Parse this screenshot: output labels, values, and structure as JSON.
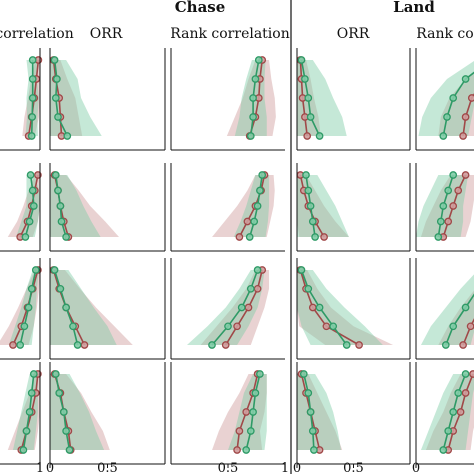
{
  "chart_data": {
    "type": "line",
    "description_note": "",
    "column_headers": [
      {
        "key": "chase",
        "text": "Chase"
      },
      {
        "key": "land",
        "text": "Land"
      }
    ],
    "panel_titles": {
      "c0": "Rank correlation",
      "c1": "ORR",
      "c2": "Rank correlation",
      "c3": "ORR",
      "c4": "Rank correlation"
    },
    "x_ticks": {
      "c0": [
        "1"
      ],
      "c1": [
        "0",
        "0.5"
      ],
      "c2": [
        "0.5",
        "1"
      ],
      "c3": [
        "0",
        "0.5"
      ],
      "c4": [
        "0"
      ]
    },
    "series": [
      {
        "key": "green",
        "color": "#2e9a66",
        "band": "#7fcca6"
      },
      {
        "key": "red",
        "color": "#a04848",
        "band": "#cf9b9b"
      }
    ],
    "panels": [
      {
        "row": 0,
        "col": 0,
        "xlim": [
          0,
          1
        ],
        "green": [
          0.86,
          0.86,
          0.86,
          0.85,
          0.84
        ],
        "red": [
          0.97,
          0.93,
          0.89,
          0.84,
          0.78
        ],
        "green_band": [
          0.12,
          0.08,
          0.12,
          0.1,
          0.12
        ],
        "red_band": [
          0.06,
          0.1,
          0.12,
          0.14,
          0.12
        ]
      },
      {
        "row": 0,
        "col": 1,
        "xlim": [
          0,
          1
        ],
        "green": [
          0.04,
          0.06,
          0.05,
          0.07,
          0.15
        ],
        "red": [
          0.03,
          0.05,
          0.08,
          0.09,
          0.1
        ],
        "green_band": [
          0.1,
          0.18,
          0.22,
          0.28,
          0.3
        ],
        "red_band": [
          0.06,
          0.1,
          0.14,
          0.16,
          0.18
        ]
      },
      {
        "row": 0,
        "col": 2,
        "xlim": [
          0,
          1
        ],
        "green": [
          0.77,
          0.74,
          0.72,
          0.72,
          0.7
        ],
        "red": [
          0.8,
          0.78,
          0.77,
          0.74,
          0.69
        ],
        "green_band": [
          0.06,
          0.08,
          0.1,
          0.12,
          0.14
        ],
        "red_band": [
          0.06,
          0.1,
          0.14,
          0.18,
          0.2
        ]
      },
      {
        "row": 0,
        "col": 3,
        "xlim": [
          0,
          1
        ],
        "green": [
          0.04,
          0.07,
          0.1,
          0.12,
          0.2
        ],
        "red": [
          0.03,
          0.04,
          0.05,
          0.07,
          0.09
        ],
        "green_band": [
          0.1,
          0.18,
          0.22,
          0.28,
          0.24
        ],
        "red_band": [
          0.05,
          0.08,
          0.1,
          0.12,
          0.12
        ]
      },
      {
        "row": 0,
        "col": 4,
        "xlim": [
          0,
          1
        ],
        "green": [
          0.6,
          0.4,
          0.3,
          0.25,
          0.22
        ],
        "red": [
          0.7,
          0.55,
          0.45,
          0.4,
          0.38
        ],
        "green_band": [
          0.12,
          0.15,
          0.18,
          0.2,
          0.2
        ],
        "red_band": [
          0.12,
          0.15,
          0.18,
          0.2,
          0.2
        ]
      },
      {
        "row": 1,
        "col": 0,
        "xlim": [
          0,
          1
        ],
        "green": [
          0.82,
          0.86,
          0.88,
          0.8,
          0.72
        ],
        "red": [
          0.96,
          0.9,
          0.84,
          0.76,
          0.62
        ],
        "green_band": [
          0.08,
          0.12,
          0.14,
          0.16,
          0.18
        ],
        "red_band": [
          0.06,
          0.12,
          0.16,
          0.2,
          0.24
        ]
      },
      {
        "row": 1,
        "col": 1,
        "xlim": [
          0,
          1
        ],
        "green": [
          0.05,
          0.07,
          0.09,
          0.1,
          0.14
        ],
        "red": [
          0.04,
          0.07,
          0.09,
          0.12,
          0.16
        ],
        "green_band": [
          0.1,
          0.16,
          0.2,
          0.26,
          0.3
        ],
        "red_band": [
          0.1,
          0.18,
          0.26,
          0.36,
          0.44
        ]
      },
      {
        "row": 1,
        "col": 2,
        "xlim": [
          0,
          1
        ],
        "green": [
          0.8,
          0.78,
          0.76,
          0.73,
          0.69
        ],
        "red": [
          0.82,
          0.79,
          0.74,
          0.67,
          0.6
        ],
        "green_band": [
          0.06,
          0.08,
          0.1,
          0.12,
          0.14
        ],
        "red_band": [
          0.08,
          0.12,
          0.16,
          0.2,
          0.24
        ]
      },
      {
        "row": 1,
        "col": 3,
        "xlim": [
          0,
          1
        ],
        "green": [
          0.08,
          0.1,
          0.12,
          0.14,
          0.16
        ],
        "red": [
          0.03,
          0.06,
          0.1,
          0.16,
          0.24
        ],
        "green_band": [
          0.1,
          0.16,
          0.22,
          0.26,
          0.3
        ],
        "red_band": [
          0.05,
          0.1,
          0.14,
          0.18,
          0.22
        ]
      },
      {
        "row": 1,
        "col": 4,
        "xlim": [
          0,
          1
        ],
        "green": [
          0.3,
          0.26,
          0.22,
          0.2,
          0.18
        ],
        "red": [
          0.4,
          0.34,
          0.3,
          0.26,
          0.22
        ],
        "green_band": [
          0.12,
          0.14,
          0.16,
          0.18,
          0.18
        ],
        "red_band": [
          0.12,
          0.14,
          0.16,
          0.18,
          0.18
        ]
      },
      {
        "row": 2,
        "col": 0,
        "xlim": [
          0,
          1
        ],
        "green": [
          0.92,
          0.84,
          0.78,
          0.7,
          0.62
        ],
        "red": [
          0.96,
          0.86,
          0.76,
          0.64,
          0.48
        ],
        "green_band": [
          0.06,
          0.1,
          0.14,
          0.18,
          0.22
        ],
        "red_band": [
          0.06,
          0.12,
          0.18,
          0.24,
          0.3
        ]
      },
      {
        "row": 2,
        "col": 1,
        "xlim": [
          0,
          1
        ],
        "green": [
          0.04,
          0.09,
          0.14,
          0.2,
          0.24
        ],
        "red": [
          0.03,
          0.08,
          0.14,
          0.22,
          0.3
        ],
        "green_band": [
          0.12,
          0.18,
          0.24,
          0.3,
          0.34
        ],
        "red_band": [
          0.1,
          0.18,
          0.26,
          0.34,
          0.42
        ]
      },
      {
        "row": 2,
        "col": 2,
        "xlim": [
          0,
          1
        ],
        "green": [
          0.76,
          0.7,
          0.62,
          0.5,
          0.36
        ],
        "red": [
          0.8,
          0.76,
          0.68,
          0.58,
          0.48
        ],
        "green_band": [
          0.06,
          0.1,
          0.14,
          0.18,
          0.22
        ],
        "red_band": [
          0.06,
          0.1,
          0.14,
          0.18,
          0.22
        ]
      },
      {
        "row": 2,
        "col": 3,
        "xlim": [
          0,
          1
        ],
        "green": [
          0.04,
          0.1,
          0.2,
          0.32,
          0.44
        ],
        "red": [
          0.03,
          0.08,
          0.14,
          0.26,
          0.55
        ],
        "green_band": [
          0.1,
          0.16,
          0.22,
          0.28,
          0.32
        ],
        "red_band": [
          0.06,
          0.1,
          0.16,
          0.24,
          0.3
        ]
      },
      {
        "row": 2,
        "col": 4,
        "xlim": [
          0,
          1
        ],
        "green": [
          0.6,
          0.5,
          0.4,
          0.3,
          0.24
        ],
        "red": [
          0.7,
          0.62,
          0.52,
          0.44,
          0.38
        ],
        "green_band": [
          0.1,
          0.14,
          0.16,
          0.18,
          0.2
        ],
        "red_band": [
          0.1,
          0.14,
          0.16,
          0.18,
          0.2
        ]
      },
      {
        "row": 3,
        "col": 0,
        "xlim": [
          0,
          1
        ],
        "green": [
          0.88,
          0.84,
          0.8,
          0.74,
          0.68
        ],
        "red": [
          0.96,
          0.92,
          0.84,
          0.74,
          0.64
        ],
        "green_band": [
          0.08,
          0.12,
          0.16,
          0.18,
          0.2
        ],
        "red_band": [
          0.06,
          0.12,
          0.18,
          0.22,
          0.26
        ]
      },
      {
        "row": 3,
        "col": 1,
        "xlim": [
          0,
          1
        ],
        "green": [
          0.05,
          0.08,
          0.12,
          0.14,
          0.17
        ],
        "red": [
          0.04,
          0.09,
          0.12,
          0.16,
          0.18
        ],
        "green_band": [
          0.12,
          0.18,
          0.22,
          0.26,
          0.3
        ],
        "red_band": [
          0.1,
          0.18,
          0.24,
          0.3,
          0.34
        ]
      },
      {
        "row": 3,
        "col": 2,
        "xlim": [
          0,
          1
        ],
        "green": [
          0.78,
          0.74,
          0.72,
          0.7,
          0.66
        ],
        "red": [
          0.76,
          0.72,
          0.66,
          0.6,
          0.58
        ],
        "green_band": [
          0.06,
          0.1,
          0.12,
          0.14,
          0.16
        ],
        "red_band": [
          0.08,
          0.12,
          0.16,
          0.18,
          0.22
        ]
      },
      {
        "row": 3,
        "col": 3,
        "xlim": [
          0,
          1
        ],
        "green": [
          0.06,
          0.1,
          0.12,
          0.14,
          0.15
        ],
        "red": [
          0.04,
          0.08,
          0.12,
          0.16,
          0.2
        ],
        "green_band": [
          0.1,
          0.16,
          0.2,
          0.22,
          0.24
        ],
        "red_band": [
          0.06,
          0.1,
          0.14,
          0.18,
          0.2
        ]
      },
      {
        "row": 3,
        "col": 4,
        "xlim": [
          0,
          1
        ],
        "green": [
          0.4,
          0.34,
          0.3,
          0.26,
          0.22
        ],
        "red": [
          0.46,
          0.4,
          0.36,
          0.3,
          0.26
        ],
        "green_band": [
          0.1,
          0.12,
          0.14,
          0.16,
          0.18
        ],
        "red_band": [
          0.1,
          0.12,
          0.14,
          0.16,
          0.18
        ]
      }
    ]
  }
}
